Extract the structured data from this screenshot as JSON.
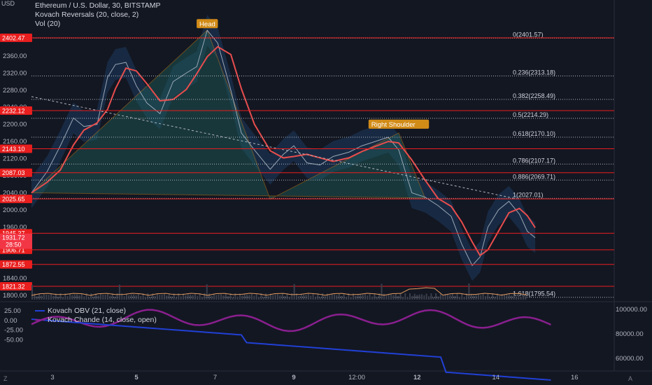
{
  "legend": {
    "symbol_label": "Ethereum / U.S. Dollar, 30, BITSTAMP",
    "indicator1": "Kovach Reversals (20, close, 2)",
    "indicator2": "Vol (20)"
  },
  "currency": "USD",
  "sub_legend": {
    "obv": "Kovach OBV (21, close)",
    "chande": "Kovach Chande (14, close, open)"
  },
  "annotations": {
    "head": "Head",
    "right_shoulder": "Right Shoulder"
  },
  "colors": {
    "background": "#131722",
    "level_line": "#e91e1e",
    "price_band_fill": "#1e3a5f",
    "fib_line": "#b2b5be",
    "ma_line": "#e84d4d",
    "triangle_fill": "#1f5f5b",
    "obv_line": "#2140d6",
    "chande_line": "#8a1f8f",
    "volume": "#e39a5f",
    "head_shoulder_tag": "#d18b17"
  },
  "chart_data": {
    "type": "line",
    "title": "Ethereum / U.S. Dollar, 30, BITSTAMP",
    "y_ticks": [
      "2400.00",
      "2360.00",
      "2320.00",
      "2280.00",
      "2240.00",
      "2200.00",
      "2160.00",
      "2120.00",
      "2080.00",
      "2040.00",
      "2000.00",
      "1960.00",
      "1840.00",
      "1800.00"
    ],
    "x_ticks": [
      "3",
      "5",
      "7",
      "9",
      "12:00",
      "12",
      "14",
      "16"
    ],
    "ylim": [
      1790,
      2430
    ],
    "price_levels": [
      2402.47,
      2232.12,
      2143.1,
      2087.03,
      2025.65,
      1945.37,
      1906.71,
      1872.55,
      1821.32
    ],
    "current_price": {
      "value": "1931.72",
      "countdown": "28:50"
    },
    "fib_levels": [
      {
        "ratio": "0",
        "value": 2401.57,
        "label": "0(2401.57)"
      },
      {
        "ratio": "0.236",
        "value": 2313.18,
        "label": "0.236(2313.18)"
      },
      {
        "ratio": "0.382",
        "value": 2258.49,
        "label": "0.382(2258.49)"
      },
      {
        "ratio": "0.5",
        "value": 2214.29,
        "label": "0.5(2214.29)"
      },
      {
        "ratio": "0.618",
        "value": 2170.1,
        "label": "0.618(2170.10)"
      },
      {
        "ratio": "0.786",
        "value": 2107.17,
        "label": "0.786(2107.17)"
      },
      {
        "ratio": "0.886",
        "value": 2069.71,
        "label": "0.886(2069.71)"
      },
      {
        "ratio": "1",
        "value": 2027.01,
        "label": "1(2027.01)"
      },
      {
        "ratio": "1.618",
        "value": 1795.54,
        "label": "1.618(1795.54)"
      }
    ],
    "price_path": [
      {
        "t": 0.0,
        "p": 2040
      },
      {
        "t": 0.3,
        "p": 2090
      },
      {
        "t": 0.55,
        "p": 2150
      },
      {
        "t": 0.8,
        "p": 2215
      },
      {
        "t": 1.0,
        "p": 2195
      },
      {
        "t": 1.25,
        "p": 2200
      },
      {
        "t": 1.45,
        "p": 2310
      },
      {
        "t": 1.6,
        "p": 2340
      },
      {
        "t": 1.8,
        "p": 2345
      },
      {
        "t": 2.0,
        "p": 2290
      },
      {
        "t": 2.2,
        "p": 2250
      },
      {
        "t": 2.45,
        "p": 2225
      },
      {
        "t": 2.7,
        "p": 2300
      },
      {
        "t": 2.95,
        "p": 2320
      },
      {
        "t": 3.15,
        "p": 2335
      },
      {
        "t": 3.35,
        "p": 2420
      },
      {
        "t": 3.55,
        "p": 2390
      },
      {
        "t": 3.8,
        "p": 2280
      },
      {
        "t": 4.0,
        "p": 2180
      },
      {
        "t": 4.25,
        "p": 2140
      },
      {
        "t": 4.55,
        "p": 2095
      },
      {
        "t": 4.8,
        "p": 2130
      },
      {
        "t": 5.0,
        "p": 2150
      },
      {
        "t": 5.25,
        "p": 2110
      },
      {
        "t": 5.5,
        "p": 2105
      },
      {
        "t": 5.75,
        "p": 2125
      },
      {
        "t": 6.05,
        "p": 2135
      },
      {
        "t": 6.3,
        "p": 2150
      },
      {
        "t": 6.55,
        "p": 2160
      },
      {
        "t": 6.8,
        "p": 2170
      },
      {
        "t": 7.0,
        "p": 2140
      },
      {
        "t": 7.25,
        "p": 2040
      },
      {
        "t": 7.5,
        "p": 2030
      },
      {
        "t": 7.75,
        "p": 2010
      },
      {
        "t": 8.0,
        "p": 1985
      },
      {
        "t": 8.2,
        "p": 1920
      },
      {
        "t": 8.4,
        "p": 1870
      },
      {
        "t": 8.55,
        "p": 1890
      },
      {
        "t": 8.7,
        "p": 1960
      },
      {
        "t": 8.9,
        "p": 2000
      },
      {
        "t": 9.1,
        "p": 2020
      },
      {
        "t": 9.3,
        "p": 1990
      },
      {
        "t": 9.45,
        "p": 1950
      },
      {
        "t": 9.6,
        "p": 1935
      }
    ],
    "volume_label": "Vol (20)",
    "obv_axis_ticks": [
      "100000.00",
      "80000.00",
      "60000.00"
    ],
    "chande_axis_ticks": [
      "25.00",
      "0.00",
      "-25.00",
      "-50.00"
    ]
  }
}
